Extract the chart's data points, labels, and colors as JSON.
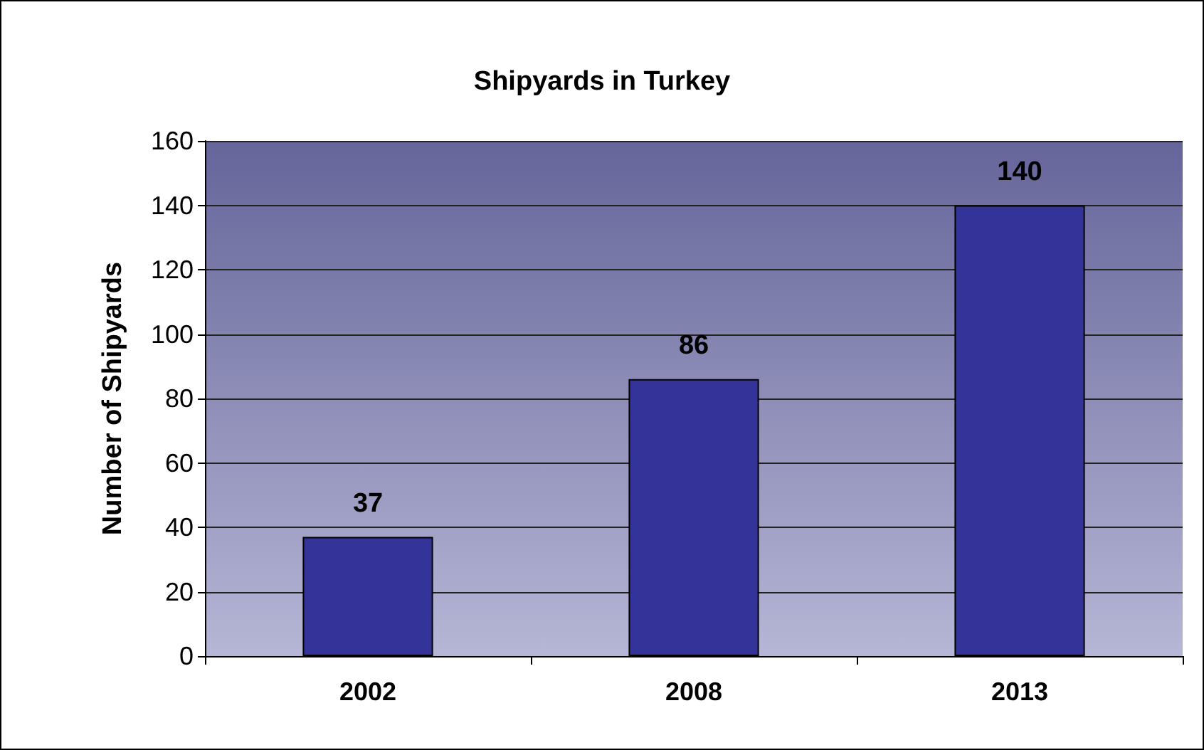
{
  "chart_data": {
    "type": "bar",
    "title": "Shipyards in Turkey",
    "ylabel": "Number of Shipyards",
    "categories": [
      "2002",
      "2008",
      "2013"
    ],
    "values": [
      37,
      86,
      140
    ],
    "color": "#333399",
    "ylim": [
      0,
      160
    ],
    "yticks": [
      0,
      20,
      40,
      60,
      80,
      100,
      120,
      140,
      160
    ],
    "grid": "y",
    "data_labels": true
  }
}
